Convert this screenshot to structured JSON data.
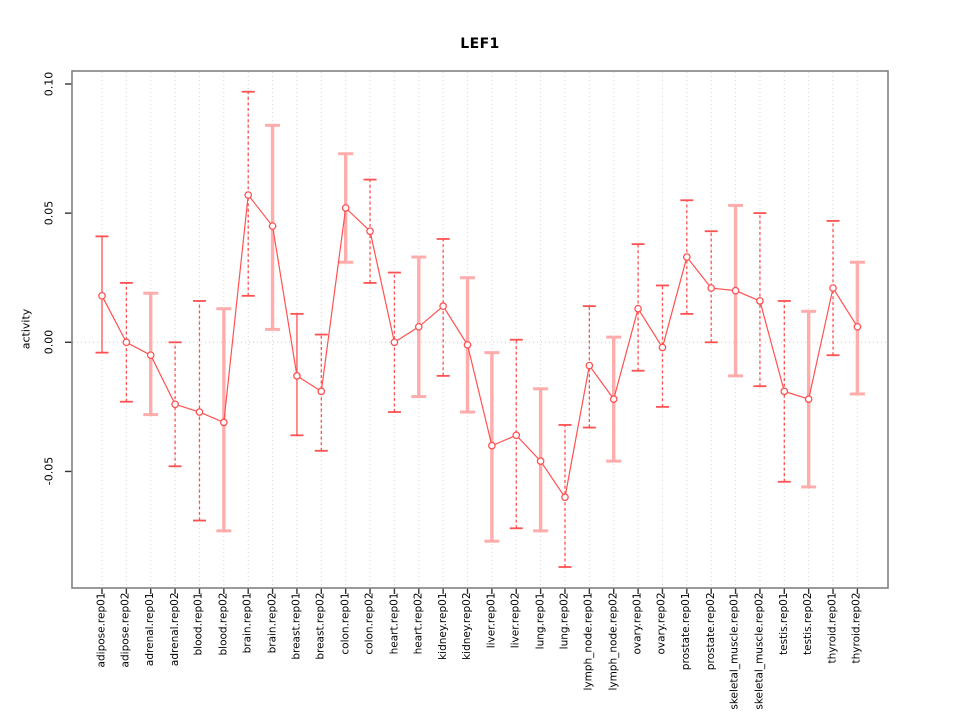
{
  "chart_data": {
    "type": "scatter",
    "subtype": "points-with-error-bars-connected",
    "title": "LEF1",
    "xlabel": "",
    "ylabel": "activity",
    "legend": "none",
    "grid": {
      "vertical": "dotted line at every category",
      "horizontal": "dotted line at y=0 only"
    },
    "ylim": [
      -0.095,
      0.105
    ],
    "yticks": {
      "values": [
        0.1,
        0.05,
        0.0,
        -0.05
      ],
      "labels": [
        "0.10",
        "0.05",
        "0.00",
        "-0.05"
      ]
    },
    "categories": [
      "adipose.rep01",
      "adipose.rep02",
      "adrenal.rep01",
      "adrenal.rep02",
      "blood.rep01",
      "blood.rep02",
      "brain.rep01",
      "brain.rep02",
      "breast.rep01",
      "breast.rep02",
      "colon.rep01",
      "colon.rep02",
      "heart.rep01",
      "heart.rep02",
      "kidney.rep01",
      "kidney.rep02",
      "liver.rep01",
      "liver.rep02",
      "lung.rep01",
      "lung.rep02",
      "lymph_node.rep01",
      "lymph_node.rep02",
      "ovary.rep01",
      "ovary.rep02",
      "prostate.rep01",
      "prostate.rep02",
      "skeletal_muscle.rep01",
      "skeletal_muscle.rep02",
      "testis.rep01",
      "testis.rep02",
      "thyroid.rep01",
      "thyroid.rep02"
    ],
    "series": [
      {
        "name": "LEF1 activity",
        "values": [
          0.018,
          0.0,
          -0.005,
          -0.024,
          -0.027,
          -0.031,
          0.057,
          0.045,
          -0.013,
          -0.019,
          0.052,
          0.043,
          0.0,
          0.006,
          0.014,
          -0.001,
          -0.04,
          -0.036,
          -0.046,
          -0.06,
          -0.009,
          -0.022,
          0.013,
          -0.002,
          0.033,
          0.021,
          0.02,
          0.016,
          -0.019,
          -0.022,
          0.021,
          0.006
        ],
        "err_lo": [
          -0.004,
          -0.023,
          -0.028,
          -0.048,
          -0.069,
          -0.073,
          0.018,
          0.005,
          -0.036,
          -0.042,
          0.031,
          0.023,
          -0.027,
          -0.021,
          -0.013,
          -0.027,
          -0.077,
          -0.072,
          -0.073,
          -0.087,
          -0.033,
          -0.046,
          -0.011,
          -0.025,
          0.011,
          0.0,
          -0.013,
          -0.017,
          -0.054,
          -0.056,
          -0.005,
          -0.02
        ],
        "err_hi": [
          0.041,
          0.023,
          0.019,
          0.0,
          0.016,
          0.013,
          0.097,
          0.084,
          0.011,
          0.003,
          0.073,
          0.063,
          0.027,
          0.033,
          0.04,
          0.025,
          -0.004,
          0.001,
          -0.018,
          -0.032,
          0.014,
          0.002,
          0.038,
          0.022,
          0.055,
          0.043,
          0.053,
          0.05,
          0.016,
          0.012,
          0.047,
          0.031
        ],
        "bar_styles": [
          "solid",
          "dashed",
          "thick",
          "dashed",
          "dashed",
          "thick",
          "dashed",
          "thick",
          "solid",
          "dashed",
          "thick",
          "dashed",
          "dashed",
          "thick",
          "dashed",
          "thick",
          "thick",
          "dashed",
          "thick",
          "dashed",
          "dashed",
          "thick",
          "dashed",
          "dashed",
          "dashed",
          "dashed",
          "thick",
          "dashed",
          "dashed",
          "thick",
          "dashed",
          "thick"
        ]
      }
    ],
    "colors": {
      "point": "#FF5151",
      "line": "#FF5151",
      "bar_thin": "#FF5151",
      "bar_thick": "#FFACAC",
      "grid": "#D6D6D6",
      "zero_line": "#C9C9C9",
      "box": "#808080",
      "tick": "#333333",
      "text": "#000000"
    }
  }
}
